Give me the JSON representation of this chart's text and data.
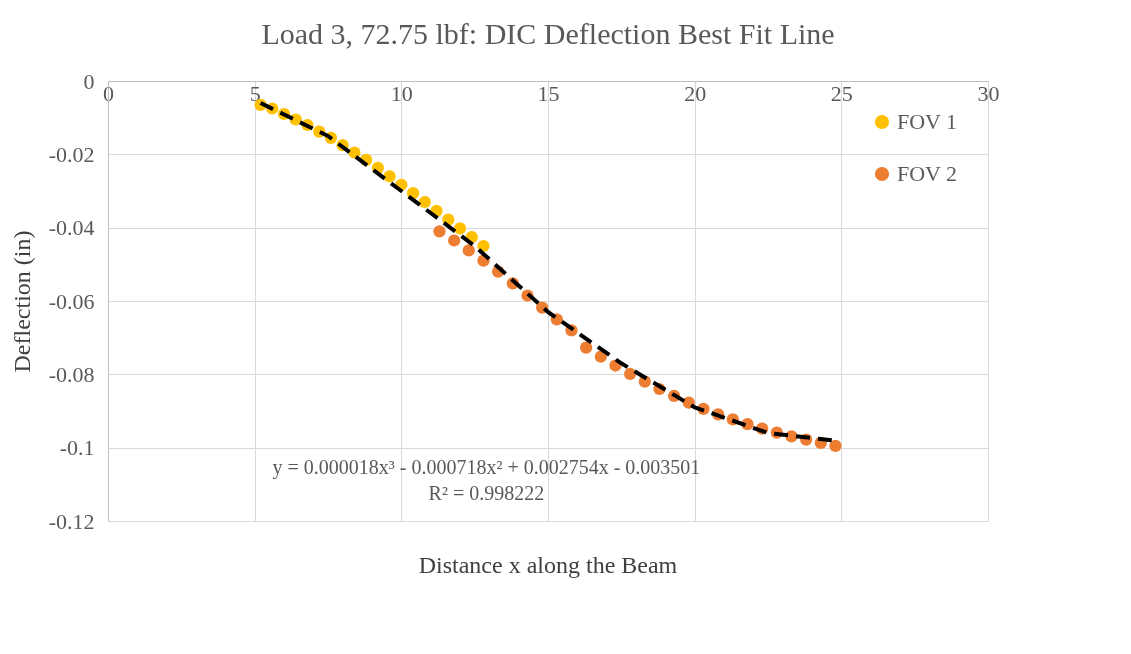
{
  "chart_data": {
    "type": "scatter",
    "title": "Load 3, 72.75 lbf: DIC Deflection Best Fit Line",
    "xlabel": "Distance x along the Beam",
    "ylabel": "Deflection (in)",
    "annotations": [
      "y = 0.000018x³ - 0.000718x² + 0.002754x - 0.003501",
      "R² = 0.998222"
    ],
    "xlim": [
      0,
      30
    ],
    "xticks": [
      0,
      5,
      10,
      15,
      20,
      25,
      30
    ],
    "ylim": [
      -0.12,
      0
    ],
    "yticks": [
      0,
      -0.02,
      -0.04,
      -0.06,
      -0.08,
      -0.1,
      -0.12
    ],
    "grid": true,
    "legend": "top right",
    "series": [
      {
        "name": "FOV 1",
        "color": "#ffc000",
        "marker": "circle",
        "x": [
          5.2,
          5.6,
          6.0,
          6.4,
          6.8,
          7.2,
          7.6,
          8.0,
          8.4,
          8.8,
          9.2,
          9.6,
          10.0,
          10.4,
          10.8,
          11.2,
          11.6,
          12.0,
          12.4,
          12.8
        ],
        "values": [
          -0.0065,
          -0.0075,
          -0.009,
          -0.0105,
          -0.012,
          -0.0138,
          -0.0155,
          -0.0175,
          -0.0195,
          -0.0215,
          -0.0237,
          -0.026,
          -0.0283,
          -0.0306,
          -0.033,
          -0.0354,
          -0.0378,
          -0.0402,
          -0.0426,
          -0.045
        ]
      },
      {
        "name": "FOV 2",
        "color": "#ed7d31",
        "marker": "circle",
        "x": [
          11.3,
          11.8,
          12.3,
          12.8,
          13.3,
          13.8,
          14.3,
          14.8,
          15.3,
          15.8,
          16.3,
          16.8,
          17.3,
          17.8,
          18.3,
          18.8,
          19.3,
          19.8,
          20.3,
          20.8,
          21.3,
          21.8,
          22.3,
          22.8,
          23.3,
          23.8,
          24.3,
          24.8
        ],
        "values": [
          -0.041,
          -0.0435,
          -0.0462,
          -0.049,
          -0.052,
          -0.0552,
          -0.0585,
          -0.0618,
          -0.065,
          -0.068,
          -0.0727,
          -0.0752,
          -0.0776,
          -0.0799,
          -0.082,
          -0.084,
          -0.0859,
          -0.0877,
          -0.0894,
          -0.0909,
          -0.0923,
          -0.0936,
          -0.0948,
          -0.0959,
          -0.0969,
          -0.0978,
          -0.0987,
          -0.0995
        ]
      },
      {
        "type": "line",
        "color": "#000000",
        "line_style": "dashed",
        "x": [
          5.2,
          7.5,
          10.0,
          12.5,
          15.0,
          17.5,
          20.0,
          22.5,
          24.7
        ],
        "values": [
          -0.006,
          -0.015,
          -0.03,
          -0.045,
          -0.063,
          -0.077,
          -0.089,
          -0.096,
          -0.098
        ]
      }
    ]
  }
}
